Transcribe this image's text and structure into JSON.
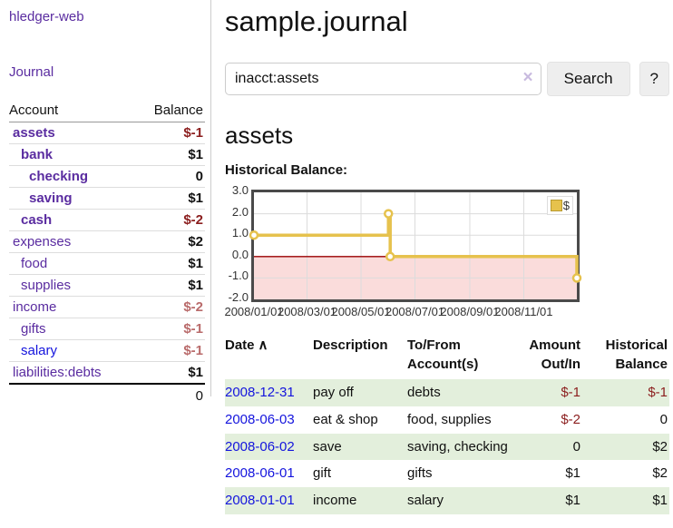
{
  "brand": "hledger-web",
  "nav": {
    "journal_label": "Journal"
  },
  "sidebar": {
    "header": {
      "account": "Account",
      "balance": "Balance"
    },
    "accounts": [
      {
        "name": "assets",
        "depth": 0,
        "bold": true,
        "link_style": "purple",
        "balance": "$-1",
        "balance_style": "neg"
      },
      {
        "name": "bank",
        "depth": 1,
        "bold": true,
        "link_style": "purple",
        "balance": "$1",
        "balance_style": "pos"
      },
      {
        "name": "checking",
        "depth": 2,
        "bold": true,
        "link_style": "purple",
        "balance": "0",
        "balance_style": "pos"
      },
      {
        "name": "saving",
        "depth": 2,
        "bold": true,
        "link_style": "purple",
        "balance": "$1",
        "balance_style": "pos"
      },
      {
        "name": "cash",
        "depth": 1,
        "bold": true,
        "link_style": "purple",
        "balance": "$-2",
        "balance_style": "neg"
      },
      {
        "name": "expenses",
        "depth": 0,
        "bold": false,
        "link_style": "purple",
        "balance": "$2",
        "balance_style": "pos"
      },
      {
        "name": "food",
        "depth": 1,
        "bold": false,
        "link_style": "purple",
        "balance": "$1",
        "balance_style": "pos"
      },
      {
        "name": "supplies",
        "depth": 1,
        "bold": false,
        "link_style": "purple",
        "balance": "$1",
        "balance_style": "pos"
      },
      {
        "name": "income",
        "depth": 0,
        "bold": false,
        "link_style": "purple",
        "balance": "$-2",
        "balance_style": "neg-light"
      },
      {
        "name": "gifts",
        "depth": 1,
        "bold": false,
        "link_style": "purple",
        "balance": "$-1",
        "balance_style": "neg-light"
      },
      {
        "name": "salary",
        "depth": 1,
        "bold": false,
        "link_style": "blue",
        "balance": "$-1",
        "balance_style": "neg-light"
      },
      {
        "name": "liabilities:debts",
        "depth": 0,
        "bold": false,
        "link_style": "purple",
        "balance": "$1",
        "balance_style": "pos"
      }
    ],
    "total": "0"
  },
  "header": {
    "title": "sample.journal"
  },
  "search": {
    "value": "inacct:assets",
    "clear_icon": "×",
    "button_label": "Search",
    "help_label": "?"
  },
  "main": {
    "account_heading": "assets",
    "chart_label": "Historical Balance:"
  },
  "chart_data": {
    "type": "line",
    "step": true,
    "title": "Historical Balance",
    "series": [
      {
        "name": "$",
        "points": [
          [
            "2008-01-01",
            1
          ],
          [
            "2008-06-01",
            2
          ],
          [
            "2008-06-03",
            0
          ],
          [
            "2008-12-31",
            -1
          ]
        ]
      }
    ],
    "x_start": "2008-01-01",
    "x_end": "2008-12-31",
    "ylim": [
      -2,
      3
    ],
    "yticks": [
      "3.0",
      "2.0",
      "1.0",
      "0.0",
      "-1.0",
      "-2.0"
    ],
    "ytick_values": [
      3,
      2,
      1,
      0,
      -1,
      -2
    ],
    "xticks": [
      "2008/01/01",
      "2008/03/01",
      "2008/05/01",
      "2008/07/01",
      "2008/09/01",
      "2008/11/01"
    ],
    "legend": {
      "label": "$",
      "position": "top-right"
    },
    "grid": true,
    "colors": {
      "line": "#e6c24d",
      "marker_fill": "#ffffff",
      "negative_region": "#fadcdb",
      "zero_line": "#990000",
      "grid": "#dcdcdc"
    }
  },
  "register": {
    "headers": [
      {
        "label": "Date",
        "sort_icon": "∧",
        "align": "left"
      },
      {
        "label": "Description",
        "align": "left"
      },
      {
        "label": "To/From Account(s)",
        "align": "left"
      },
      {
        "label": "Amount Out/In",
        "align": "right"
      },
      {
        "label": "Historical Balance",
        "align": "right"
      }
    ],
    "rows": [
      {
        "date": "2008-12-31",
        "description": "pay off",
        "accounts": "debts",
        "amount": "$-1",
        "amount_neg": true,
        "balance": "$-1",
        "balance_neg": true
      },
      {
        "date": "2008-06-03",
        "description": "eat & shop",
        "accounts": "food, supplies",
        "amount": "$-2",
        "amount_neg": true,
        "balance": "0",
        "balance_neg": false
      },
      {
        "date": "2008-06-02",
        "description": "save",
        "accounts": "saving, checking",
        "amount": "0",
        "amount_neg": false,
        "balance": "$2",
        "balance_neg": false
      },
      {
        "date": "2008-06-01",
        "description": "gift",
        "accounts": "gifts",
        "amount": "$1",
        "amount_neg": false,
        "balance": "$2",
        "balance_neg": false
      },
      {
        "date": "2008-01-01",
        "description": "income",
        "accounts": "salary",
        "amount": "$1",
        "amount_neg": false,
        "balance": "$1",
        "balance_neg": false
      }
    ]
  },
  "colors": {
    "link_purple": "#5a2ca0",
    "link_blue": "#1414dd",
    "negative_dark": "#8b1e1e",
    "negative_light": "#b96b6b",
    "row_stripe_green": "#e3efdc",
    "button_bg": "#eeeeee"
  }
}
